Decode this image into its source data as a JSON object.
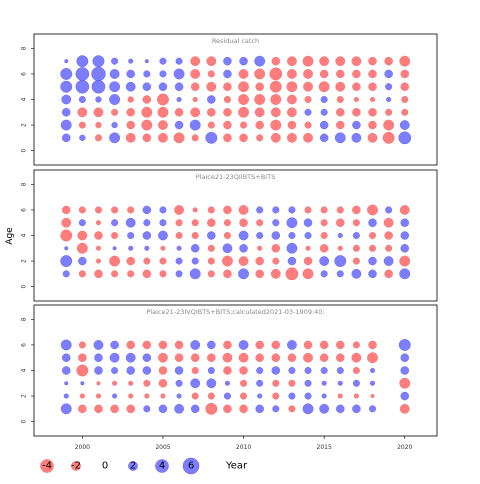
{
  "chart_data": {
    "type": "scatter",
    "xlabel": "Year",
    "ylabel": "Age",
    "xlim": [
      1997,
      2022
    ],
    "ylim": [
      -0.5,
      8.5
    ],
    "x_ticks": [
      2000,
      2005,
      2010,
      2015,
      2020
    ],
    "y_ticks": [
      0,
      2,
      4,
      6,
      8
    ],
    "grid": false,
    "positive_color": "#6666ff",
    "negative_color": "#ff6666",
    "legend": {
      "placement": "bottom-left",
      "entries": [
        {
          "label": "-4",
          "value": -4
        },
        {
          "label": "-2",
          "value": -2
        },
        {
          "label": "0",
          "value": 0
        },
        {
          "label": "2",
          "value": 2
        },
        {
          "label": "4",
          "value": 4
        },
        {
          "label": "6",
          "value": 6
        }
      ]
    },
    "panels": [
      {
        "title": "Residual catch",
        "years": [
          1999,
          2000,
          2001,
          2002,
          2003,
          2004,
          2005,
          2006,
          2007,
          2008,
          2009,
          2010,
          2011,
          2012,
          2013,
          2014,
          2015,
          2016,
          2017,
          2018,
          2019,
          2020
        ],
        "ages": [
          1,
          2,
          3,
          4,
          5,
          6,
          7
        ],
        "residuals": [
          [
            1.5,
            0.8,
            -1.0,
            2.5,
            -2.0,
            -1.5,
            -2.0,
            -2.5,
            -1.0,
            3.0,
            -1.5,
            -1.5,
            -1.0,
            -2.0,
            -2.0,
            -2.0,
            1.5,
            2.5,
            2.0,
            -2.0,
            -3.0,
            3.5
          ],
          [
            2.5,
            -1.0,
            -0.8,
            0.8,
            -1.5,
            -2.5,
            -2.0,
            1.5,
            2.5,
            -1.0,
            -1.5,
            -1.0,
            -1.5,
            -2.5,
            -1.5,
            -1.0,
            1.5,
            -1.5,
            1.5,
            -1.5,
            -2.5,
            2.0
          ],
          [
            1.5,
            -2.0,
            -2.0,
            -1.0,
            -1.5,
            -2.5,
            -2.5,
            -1.5,
            -2.0,
            -1.5,
            -1.5,
            -2.5,
            -2.0,
            -2.0,
            -2.0,
            1.0,
            1.0,
            -1.5,
            -1.5,
            -1.5,
            -1.0,
            -1.0
          ],
          [
            2.0,
            1.0,
            0.8,
            2.5,
            -0.8,
            -1.5,
            -3.0,
            0.5,
            -0.5,
            1.5,
            -1.0,
            -2.5,
            -2.5,
            -2.5,
            -2.0,
            -1.0,
            1.0,
            -1.0,
            -0.5,
            -0.5,
            0.5,
            -1.0
          ],
          [
            3.0,
            4.0,
            4.0,
            2.5,
            2.0,
            1.5,
            1.5,
            1.5,
            -1.5,
            -2.0,
            -1.5,
            -2.5,
            -1.5,
            -3.0,
            -2.5,
            -2.0,
            -2.5,
            -2.0,
            -1.5,
            -1.5,
            1.0,
            -1.5
          ],
          [
            3.0,
            4.0,
            4.5,
            2.0,
            1.5,
            1.0,
            1.0,
            2.5,
            -2.0,
            -1.0,
            1.5,
            -2.0,
            -2.5,
            -3.5,
            -2.0,
            -2.0,
            -1.5,
            -1.5,
            -1.5,
            -1.5,
            1.5,
            -1.5
          ],
          [
            0.3,
            3.0,
            3.0,
            1.0,
            0.5,
            0.3,
            1.0,
            1.0,
            -2.0,
            -2.0,
            1.5,
            1.5,
            2.5,
            -1.5,
            -2.0,
            -2.5,
            -2.0,
            -2.0,
            -2.0,
            -1.5,
            -1.5,
            -2.5
          ]
        ]
      },
      {
        "title": "Plaice21-23QIIBTS+BITS",
        "years": [
          1999,
          2000,
          2001,
          2002,
          2003,
          2004,
          2005,
          2006,
          2007,
          2008,
          2009,
          2010,
          2011,
          2012,
          2013,
          2014,
          2015,
          2016,
          2017,
          2018,
          2019,
          2020
        ],
        "ages": [
          1,
          2,
          3,
          4,
          5,
          6
        ],
        "residuals": [
          [
            1.0,
            -1.0,
            -1.5,
            -1.0,
            -1.0,
            -1.5,
            -1.0,
            1.0,
            2.5,
            -1.0,
            -1.5,
            2.5,
            -1.5,
            -2.0,
            -3.5,
            -2.5,
            1.0,
            1.0,
            2.0,
            1.5,
            -1.5,
            2.5
          ],
          [
            3.0,
            1.5,
            -0.5,
            -2.5,
            -1.5,
            -1.0,
            -1.0,
            1.0,
            1.0,
            -1.0,
            -2.5,
            -2.0,
            -1.5,
            -1.0,
            1.5,
            -1.5,
            2.0,
            3.0,
            -1.0,
            1.5,
            2.0,
            -2.5
          ],
          [
            0.3,
            -2.5,
            -0.5,
            0.3,
            0.5,
            0.5,
            -0.5,
            0.5,
            1.5,
            -1.0,
            2.0,
            1.5,
            -0.5,
            -1.5,
            2.5,
            -0.5,
            -1.5,
            -0.5,
            -1.0,
            -1.0,
            -1.0,
            1.5
          ],
          [
            -3.0,
            -2.0,
            -1.5,
            -1.0,
            1.0,
            1.5,
            2.0,
            -1.0,
            -1.0,
            1.5,
            -1.0,
            2.0,
            1.0,
            1.5,
            1.0,
            1.0,
            -1.0,
            0.5,
            1.0,
            -1.0,
            -1.5,
            1.5
          ],
          [
            -2.0,
            1.0,
            -0.5,
            1.0,
            2.0,
            1.0,
            1.0,
            -1.0,
            -1.0,
            -1.5,
            -1.0,
            -1.5,
            -1.0,
            1.0,
            2.5,
            1.5,
            -1.0,
            -1.5,
            -1.0,
            1.5,
            -2.0,
            1.5
          ],
          [
            -1.5,
            -1.0,
            -1.0,
            -1.0,
            -1.0,
            1.5,
            1.0,
            -2.0,
            -0.5,
            -1.0,
            -1.5,
            -2.0,
            1.0,
            1.0,
            1.0,
            -1.0,
            -1.0,
            -1.0,
            -1.5,
            -2.5,
            1.0,
            -2.0
          ]
        ]
      },
      {
        "title": "Plaice21-23IVQIBTS+BITS;calculated2021-03-1909:40:",
        "years": [
          1999,
          2000,
          2001,
          2002,
          2003,
          2004,
          2005,
          2006,
          2007,
          2008,
          2009,
          2010,
          2011,
          2012,
          2013,
          2014,
          2015,
          2016,
          2017,
          2018,
          2020
        ],
        "ages": [
          1,
          2,
          3,
          4,
          5,
          6
        ],
        "residuals": [
          [
            2.5,
            -1.5,
            -1.5,
            -1.5,
            -1.5,
            1.0,
            1.5,
            2.0,
            1.5,
            -3.0,
            -1.5,
            -1.5,
            1.5,
            1.0,
            -1.0,
            2.5,
            2.0,
            1.5,
            1.5,
            1.0,
            -2.0
          ],
          [
            0.5,
            -0.5,
            -0.5,
            0.5,
            -0.5,
            -0.5,
            -0.5,
            0.5,
            -1.0,
            -1.0,
            1.0,
            -1.0,
            0.5,
            -1.0,
            1.0,
            1.0,
            0.5,
            -0.5,
            -0.5,
            -0.3,
            1.5
          ],
          [
            0.3,
            0.3,
            -0.3,
            -0.5,
            -0.5,
            -1.0,
            -1.5,
            1.0,
            2.0,
            2.0,
            0.5,
            -1.0,
            1.0,
            -1.0,
            -1.0,
            1.0,
            0.5,
            0.5,
            1.0,
            0.5,
            -2.5
          ],
          [
            1.5,
            -3.0,
            1.5,
            1.0,
            1.5,
            1.5,
            -1.5,
            1.5,
            -1.0,
            1.0,
            -1.5,
            -1.5,
            1.0,
            1.5,
            1.0,
            1.0,
            1.0,
            1.0,
            -1.0,
            0.5,
            1.5
          ],
          [
            1.5,
            -1.5,
            1.5,
            2.0,
            2.0,
            1.5,
            -2.0,
            -1.5,
            -1.5,
            -1.5,
            -2.0,
            -2.0,
            -1.5,
            -1.5,
            -1.5,
            -2.0,
            -1.5,
            -1.5,
            -2.0,
            -2.5,
            1.5
          ],
          [
            2.5,
            -1.0,
            2.0,
            1.5,
            -1.5,
            -1.5,
            -1.5,
            -1.5,
            2.0,
            1.5,
            -1.5,
            2.0,
            -1.5,
            -1.5,
            2.0,
            -1.5,
            -1.5,
            -1.5,
            -1.0,
            -1.5,
            3.0
          ]
        ]
      }
    ]
  }
}
